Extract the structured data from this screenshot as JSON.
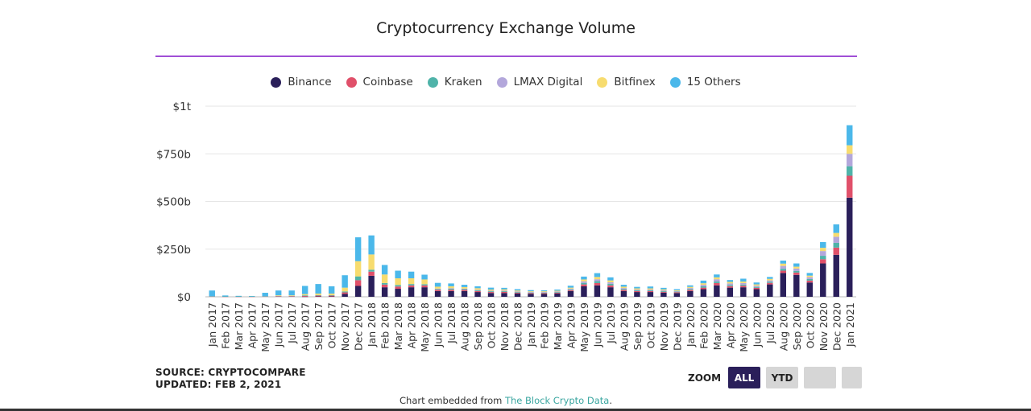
{
  "chart_data": {
    "type": "bar",
    "stacked": true,
    "title": "Cryptocurrency Exchange Volume",
    "ylim": [
      0,
      1000
    ],
    "yticks": [
      {
        "value": 0,
        "label": "$0"
      },
      {
        "value": 250,
        "label": "$250b"
      },
      {
        "value": 500,
        "label": "$500b"
      },
      {
        "value": 750,
        "label": "$750b"
      },
      {
        "value": 1000,
        "label": "$1t"
      }
    ],
    "legend_position": "top",
    "grid": true,
    "categories": [
      "Jan 2017",
      "Feb 2017",
      "Mar 2017",
      "Apr 2017",
      "May 2017",
      "Jun 2017",
      "Jul 2017",
      "Aug 2017",
      "Sep 2017",
      "Oct 2017",
      "Nov 2017",
      "Dec 2017",
      "Jan 2018",
      "Feb 2018",
      "Mar 2018",
      "Apr 2018",
      "May 2018",
      "Jun 2018",
      "Jul 2018",
      "Aug 2018",
      "Sep 2018",
      "Oct 2018",
      "Nov 2018",
      "Dec 2018",
      "Jan 2019",
      "Feb 2019",
      "Mar 2019",
      "Apr 2019",
      "May 2019",
      "Jun 2019",
      "Jul 2019",
      "Aug 2019",
      "Sep 2019",
      "Oct 2019",
      "Nov 2019",
      "Dec 2019",
      "Jan 2020",
      "Feb 2020",
      "Mar 2020",
      "Apr 2020",
      "May 2020",
      "Jun 2020",
      "Jul 2020",
      "Aug 2020",
      "Sep 2020",
      "Oct 2020",
      "Nov 2020",
      "Dec 2020",
      "Jan 2021"
    ],
    "series": [
      {
        "name": "Binance",
        "color": "#2a1f5a",
        "values": [
          0,
          0,
          0,
          0,
          0,
          0,
          0,
          1,
          2,
          2,
          15,
          57,
          110,
          50,
          42,
          50,
          50,
          30,
          30,
          30,
          25,
          20,
          20,
          18,
          15,
          15,
          18,
          30,
          55,
          60,
          50,
          30,
          25,
          25,
          22,
          20,
          30,
          40,
          60,
          48,
          50,
          40,
          65,
          125,
          115,
          75,
          175,
          220,
          520
        ]
      },
      {
        "name": "Coinbase",
        "color": "#e0506a",
        "values": [
          2,
          1,
          1,
          1,
          2,
          3,
          3,
          4,
          4,
          4,
          8,
          30,
          22,
          14,
          12,
          10,
          10,
          7,
          7,
          6,
          5,
          5,
          6,
          4,
          4,
          4,
          4,
          5,
          10,
          12,
          10,
          6,
          5,
          5,
          4,
          4,
          6,
          8,
          12,
          8,
          8,
          7,
          8,
          12,
          12,
          10,
          22,
          38,
          115
        ]
      },
      {
        "name": "Kraken",
        "color": "#4fb3a9",
        "values": [
          1,
          1,
          1,
          1,
          1,
          2,
          2,
          3,
          3,
          3,
          5,
          20,
          10,
          8,
          8,
          7,
          6,
          4,
          5,
          4,
          4,
          4,
          4,
          3,
          3,
          3,
          3,
          4,
          8,
          10,
          8,
          5,
          4,
          4,
          4,
          3,
          5,
          7,
          8,
          6,
          6,
          5,
          6,
          10,
          9,
          8,
          18,
          25,
          50
        ]
      },
      {
        "name": "LMAX Digital",
        "color": "#b3a7db",
        "values": [
          0,
          0,
          0,
          0,
          0,
          0,
          0,
          0,
          0,
          0,
          0,
          0,
          0,
          0,
          0,
          0,
          0,
          2,
          3,
          3,
          3,
          3,
          3,
          3,
          3,
          3,
          3,
          4,
          8,
          10,
          8,
          5,
          4,
          4,
          4,
          3,
          5,
          8,
          12,
          8,
          8,
          6,
          7,
          15,
          12,
          10,
          25,
          32,
          65
        ]
      },
      {
        "name": "Bitfinex",
        "color": "#f7dc6f",
        "values": [
          0,
          0,
          0,
          0,
          0,
          3,
          3,
          6,
          8,
          8,
          20,
          80,
          80,
          45,
          35,
          30,
          25,
          10,
          10,
          8,
          8,
          6,
          6,
          5,
          4,
          4,
          4,
          5,
          10,
          12,
          10,
          7,
          6,
          6,
          5,
          4,
          6,
          8,
          10,
          8,
          8,
          7,
          8,
          12,
          10,
          8,
          17,
          20,
          45
        ]
      },
      {
        "name": "15 Others",
        "color": "#4bb8ea",
        "values": [
          30,
          5,
          3,
          2,
          18,
          25,
          25,
          43,
          50,
          38,
          65,
          125,
          100,
          50,
          40,
          35,
          25,
          20,
          15,
          12,
          10,
          10,
          8,
          7,
          6,
          5,
          6,
          10,
          15,
          20,
          16,
          10,
          8,
          10,
          8,
          6,
          8,
          14,
          15,
          10,
          15,
          10,
          10,
          16,
          17,
          14,
          30,
          45,
          105
        ]
      }
    ]
  },
  "source_text": "SOURCE: CRYPTOCOMPARE",
  "updated_text": "UPDATED: FEB 2, 2021",
  "zoom": {
    "label": "ZOOM",
    "buttons": [
      {
        "label": "ALL",
        "active": true
      },
      {
        "label": "YTD",
        "active": false
      },
      {
        "label": "",
        "active": false
      },
      {
        "label": "",
        "active": false
      }
    ]
  },
  "footer": {
    "prefix": "Chart embedded from ",
    "link_text": "The Block Crypto Data",
    "suffix": "."
  }
}
